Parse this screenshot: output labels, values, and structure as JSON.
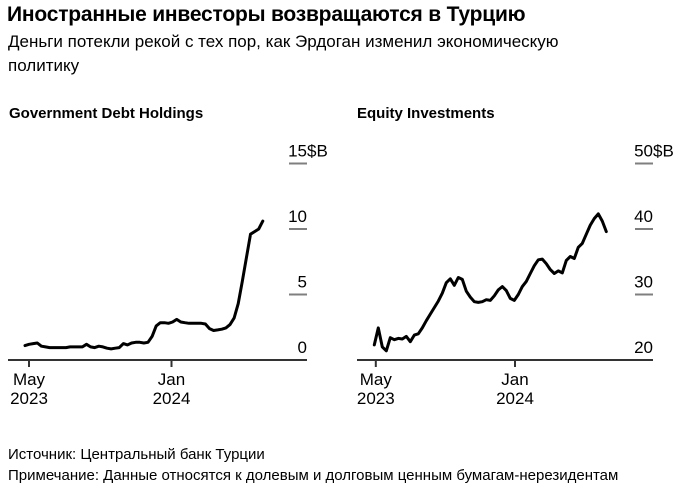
{
  "header": {
    "title": "Иностранные инвесторы возвращаются в Турцию",
    "subtitle_line1": "Деньги потекли рекой с тех пор, как Эрдоган изменил экономическую",
    "subtitle_line2": "политику"
  },
  "footer": {
    "source": "Источник: Центральный банк Турции",
    "note": "Примечание: Данные относятся к долевым и долговым ценным бумагам-нерезидентам"
  },
  "colors": {
    "background": "#ffffff",
    "text": "#000000",
    "axis": "#333333",
    "tick_dash": "#7f7f7f",
    "series_line": "#000000"
  },
  "chart_data": [
    {
      "type": "line",
      "id": "government-debt",
      "title": "Government Debt Holdings",
      "unit": "$B",
      "x_interval": "weekly",
      "x_range": "late Apr 2023 – early Jun 2024",
      "xticks": [
        {
          "month": "May",
          "year": "2023"
        },
        {
          "month": "Jan",
          "year": "2024"
        }
      ],
      "yticks": [
        15,
        10,
        5,
        0
      ],
      "ylim": [
        0,
        15
      ],
      "grid": false,
      "values": [
        1.1,
        1.2,
        1.25,
        1.3,
        1.05,
        1.0,
        0.95,
        0.95,
        0.95,
        0.95,
        0.95,
        1.0,
        1.0,
        1.0,
        1.0,
        1.2,
        1.0,
        0.95,
        1.05,
        1.0,
        0.9,
        0.85,
        0.9,
        0.95,
        1.25,
        1.15,
        1.3,
        1.35,
        1.35,
        1.3,
        1.35,
        1.8,
        2.6,
        2.85,
        2.85,
        2.8,
        2.9,
        3.1,
        2.9,
        2.85,
        2.8,
        2.8,
        2.8,
        2.8,
        2.75,
        2.4,
        2.25,
        2.3,
        2.35,
        2.45,
        2.7,
        3.2,
        4.3,
        6.0,
        7.8,
        9.6,
        9.8,
        10.0,
        10.6
      ]
    },
    {
      "type": "line",
      "id": "equity",
      "title": "Equity Investments",
      "unit": "$B",
      "x_interval": "weekly",
      "x_range": "late Apr 2023 – early Jun 2024",
      "xticks": [
        {
          "month": "May",
          "year": "2023"
        },
        {
          "month": "Jan",
          "year": "2024"
        }
      ],
      "yticks": [
        50,
        40,
        30,
        20
      ],
      "ylim": [
        20,
        50
      ],
      "grid": false,
      "values": [
        22.3,
        24.9,
        22.0,
        21.4,
        23.4,
        23.1,
        23.3,
        23.2,
        23.6,
        22.8,
        23.8,
        24.0,
        24.9,
        26.0,
        27.0,
        28.0,
        29.0,
        30.2,
        31.8,
        32.4,
        31.4,
        32.6,
        32.3,
        30.5,
        29.6,
        28.9,
        28.8,
        28.9,
        29.2,
        29.1,
        29.8,
        30.7,
        31.2,
        30.6,
        29.4,
        29.1,
        30.0,
        31.2,
        32.0,
        33.2,
        34.4,
        35.3,
        35.4,
        34.7,
        33.8,
        33.2,
        33.6,
        33.3,
        35.2,
        35.8,
        35.5,
        37.2,
        37.8,
        39.2,
        40.6,
        41.6,
        42.3,
        41.2,
        39.6
      ]
    }
  ]
}
